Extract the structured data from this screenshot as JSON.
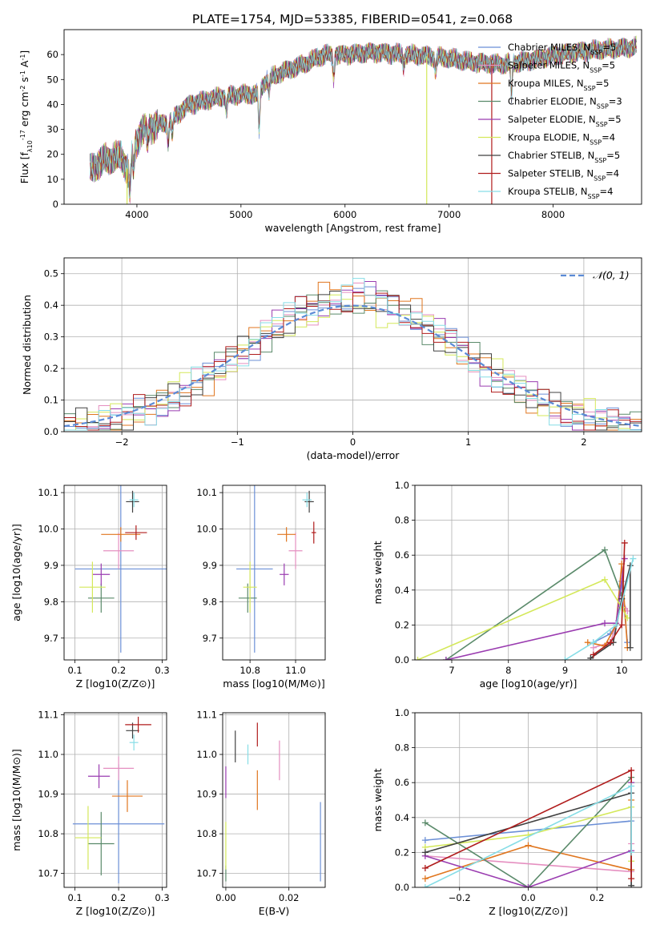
{
  "figure_title": "PLATE=1754, MJD=53385, FIBERID=0541, z=0.068",
  "series_styles": [
    {
      "name": "Chabrier MILES",
      "nssp": "5",
      "color": "#6b8fd6"
    },
    {
      "name": "Salpeter MILES",
      "nssp": "5",
      "color": "#e58fc0"
    },
    {
      "name": "Kroupa MILES",
      "nssp": "5",
      "color": "#e0761f"
    },
    {
      "name": "Chabrier ELODIE",
      "nssp": "3",
      "color": "#5a8a6a"
    },
    {
      "name": "Salpeter ELODIE",
      "nssp": "5",
      "color": "#9a3cb0"
    },
    {
      "name": "Kroupa ELODIE",
      "nssp": "4",
      "color": "#d4e85a"
    },
    {
      "name": "Chabrier STELIB",
      "nssp": "5",
      "color": "#404040"
    },
    {
      "name": "Salpeter STELIB",
      "nssp": "4",
      "color": "#b01c1c"
    },
    {
      "name": "Kroupa STELIB",
      "nssp": "4",
      "color": "#86dde6"
    }
  ],
  "chart_data": [
    {
      "id": "spectrum",
      "type": "line",
      "xlabel": "wavelength [Angstrom, rest frame]",
      "ylabel": "Flux [f_λ10^-17 erg cm^-2 s^-1 A^-1]",
      "xlim": [
        3300,
        8850
      ],
      "ylim": [
        0,
        70
      ],
      "xticks": [
        4000,
        5000,
        6000,
        7000,
        8000
      ],
      "yticks": [
        0,
        10,
        20,
        30,
        40,
        50,
        60
      ],
      "legend": "upper-right",
      "continuum": [
        [
          3550,
          14
        ],
        [
          3700,
          18
        ],
        [
          3850,
          19
        ],
        [
          3920,
          13
        ],
        [
          3960,
          22
        ],
        [
          4050,
          30
        ],
        [
          4300,
          33
        ],
        [
          4500,
          40
        ],
        [
          4800,
          43
        ],
        [
          5000,
          44
        ],
        [
          5150,
          44
        ],
        [
          5250,
          50
        ],
        [
          5400,
          53
        ],
        [
          5600,
          56
        ],
        [
          5800,
          60
        ],
        [
          6000,
          60
        ],
        [
          6300,
          61
        ],
        [
          6600,
          60
        ],
        [
          6900,
          59
        ],
        [
          7200,
          57
        ],
        [
          7500,
          56
        ],
        [
          7800,
          58
        ],
        [
          8200,
          61
        ],
        [
          8500,
          62
        ],
        [
          8800,
          63
        ]
      ],
      "dips": [
        [
          3934,
          12
        ],
        [
          3968,
          9
        ],
        [
          4101,
          6
        ],
        [
          4300,
          8
        ],
        [
          4340,
          7
        ],
        [
          4861,
          6
        ],
        [
          5175,
          16
        ],
        [
          5270,
          6
        ],
        [
          5890,
          9
        ],
        [
          6563,
          5
        ],
        [
          6870,
          6
        ],
        [
          7600,
          14
        ]
      ],
      "spikes": [
        {
          "series": 5,
          "x": 3905
        },
        {
          "series": 5,
          "x": 6785
        },
        {
          "series": 7,
          "x": 7410
        }
      ]
    },
    {
      "id": "residuals",
      "type": "bar",
      "xlabel": "(data-model)/error",
      "ylabel": "Normed distribution",
      "xlim": [
        -2.5,
        2.5
      ],
      "ylim": [
        0,
        0.55
      ],
      "xticks": [
        -2,
        -1,
        0,
        1,
        2
      ],
      "yticks": [
        0.0,
        0.1,
        0.2,
        0.3,
        0.4,
        0.5
      ],
      "grid": true,
      "bin_width": 0.1,
      "reference_curve": "N(0,1)",
      "legend": "upper-right"
    },
    {
      "id": "z-age",
      "type": "scatter",
      "xlabel": "Z [log10(Z/Z⊙)]",
      "ylabel": "age [log10(age/yr)]",
      "xlim": [
        0.075,
        0.31
      ],
      "ylim": [
        9.64,
        10.12
      ],
      "xticks": [
        0.1,
        0.2,
        0.3
      ],
      "yticks": [
        9.7,
        9.8,
        9.9,
        10.0,
        10.1
      ],
      "grid": true,
      "points": [
        {
          "series": 0,
          "x": 0.205,
          "y": 9.89,
          "xe": 0.105,
          "ye": 0.23
        },
        {
          "series": 1,
          "x": 0.2,
          "y": 9.94,
          "xe": 0.035,
          "ye": 0.05
        },
        {
          "series": 2,
          "x": 0.205,
          "y": 9.985,
          "xe": 0.045,
          "ye": 0.02
        },
        {
          "series": 3,
          "x": 0.16,
          "y": 9.81,
          "xe": 0.03,
          "ye": 0.04
        },
        {
          "series": 4,
          "x": 0.16,
          "y": 9.875,
          "xe": 0.02,
          "ye": 0.03
        },
        {
          "series": 5,
          "x": 0.14,
          "y": 9.84,
          "xe": 0.03,
          "ye": 0.07
        },
        {
          "series": 6,
          "x": 0.232,
          "y": 10.075,
          "xe": 0.015,
          "ye": 0.03
        },
        {
          "series": 7,
          "x": 0.24,
          "y": 9.99,
          "xe": 0.025,
          "ye": 0.02
        },
        {
          "series": 8,
          "x": 0.235,
          "y": 10.08,
          "xe": 0.01,
          "ye": 0.02
        }
      ]
    },
    {
      "id": "mass-age",
      "type": "scatter",
      "xlabel": "mass [log10(M/M⊙)]",
      "ylabel": "",
      "xlim": [
        10.68,
        11.13
      ],
      "ylim": [
        9.64,
        10.12
      ],
      "xticks": [
        10.8,
        11.0
      ],
      "yticks": [
        9.7,
        9.8,
        9.9,
        10.0,
        10.1
      ],
      "grid": true,
      "points": [
        {
          "series": 0,
          "x": 10.82,
          "y": 9.89,
          "xe": 0.08,
          "ye": 0.23
        },
        {
          "series": 1,
          "x": 11.0,
          "y": 9.94,
          "xe": 0.03,
          "ye": 0.05
        },
        {
          "series": 2,
          "x": 10.96,
          "y": 9.985,
          "xe": 0.04,
          "ye": 0.02
        },
        {
          "series": 3,
          "x": 10.79,
          "y": 9.81,
          "xe": 0.04,
          "ye": 0.04
        },
        {
          "series": 4,
          "x": 10.95,
          "y": 9.875,
          "xe": 0.02,
          "ye": 0.03
        },
        {
          "series": 5,
          "x": 10.8,
          "y": 9.84,
          "xe": 0.03,
          "ye": 0.07
        },
        {
          "series": 6,
          "x": 11.06,
          "y": 10.075,
          "xe": 0.02,
          "ye": 0.03
        },
        {
          "series": 7,
          "x": 11.08,
          "y": 9.99,
          "xe": 0.01,
          "ye": 0.03
        },
        {
          "series": 8,
          "x": 11.05,
          "y": 10.08,
          "xe": 0.02,
          "ye": 0.02
        }
      ]
    },
    {
      "id": "age-weight",
      "type": "line",
      "xlabel": "age [log10(age/yr)]",
      "ylabel": "mass weight",
      "xlim": [
        6.35,
        10.35
      ],
      "ylim": [
        0,
        1.0
      ],
      "xticks": [
        7,
        8,
        9,
        10
      ],
      "yticks": [
        0.0,
        0.2,
        0.4,
        0.6,
        0.8,
        1.0
      ],
      "grid": true,
      "series": [
        {
          "series": 0,
          "points": [
            [
              9.5,
              0.1
            ],
            [
              9.8,
              0.15
            ],
            [
              9.9,
              0.2
            ],
            [
              10.0,
              0.45
            ],
            [
              10.1,
              0.1
            ]
          ]
        },
        {
          "series": 1,
          "points": [
            [
              9.5,
              0.07
            ],
            [
              9.8,
              0.1
            ],
            [
              9.9,
              0.2
            ],
            [
              10.0,
              0.35
            ],
            [
              10.1,
              0.28
            ]
          ]
        },
        {
          "series": 2,
          "points": [
            [
              9.4,
              0.1
            ],
            [
              9.7,
              0.08
            ],
            [
              9.9,
              0.2
            ],
            [
              10.0,
              0.55
            ],
            [
              10.1,
              0.07
            ]
          ]
        },
        {
          "series": 3,
          "points": [
            [
              6.9,
              0.0
            ],
            [
              9.7,
              0.63
            ],
            [
              10.0,
              0.37
            ]
          ]
        },
        {
          "series": 4,
          "points": [
            [
              6.9,
              0.0
            ],
            [
              9.7,
              0.21
            ],
            [
              9.9,
              0.21
            ],
            [
              10.05,
              0.58
            ]
          ]
        },
        {
          "series": 5,
          "points": [
            [
              6.4,
              0.0
            ],
            [
              9.7,
              0.46
            ],
            [
              10.0,
              0.3
            ],
            [
              10.1,
              0.24
            ]
          ]
        },
        {
          "series": 6,
          "points": [
            [
              9.45,
              0.01
            ],
            [
              9.85,
              0.1
            ],
            [
              10.0,
              0.35
            ],
            [
              10.15,
              0.54
            ],
            [
              10.15,
              0.07
            ]
          ]
        },
        {
          "series": 7,
          "points": [
            [
              9.5,
              0.03
            ],
            [
              9.8,
              0.1
            ],
            [
              10.0,
              0.2
            ],
            [
              10.05,
              0.67
            ]
          ]
        },
        {
          "series": 8,
          "points": [
            [
              9.0,
              0.0
            ],
            [
              9.5,
              0.1
            ],
            [
              9.9,
              0.2
            ],
            [
              10.2,
              0.58
            ]
          ]
        }
      ]
    },
    {
      "id": "z-mass",
      "type": "scatter",
      "xlabel": "Z [log10(Z/Z⊙)]",
      "ylabel": "mass [log10(M/M⊙)]",
      "xlim": [
        0.075,
        0.31
      ],
      "ylim": [
        10.665,
        11.105
      ],
      "xticks": [
        0.1,
        0.2,
        0.3
      ],
      "yticks": [
        10.7,
        10.8,
        10.9,
        11.0,
        11.1
      ],
      "grid": true,
      "points": [
        {
          "series": 0,
          "x": 0.2,
          "y": 10.825,
          "xe": 0.105,
          "ye": 0.15
        },
        {
          "series": 1,
          "x": 0.2,
          "y": 10.965,
          "xe": 0.035,
          "ye": 0.03
        },
        {
          "series": 2,
          "x": 0.22,
          "y": 10.895,
          "xe": 0.035,
          "ye": 0.04
        },
        {
          "series": 3,
          "x": 0.16,
          "y": 10.775,
          "xe": 0.03,
          "ye": 0.08
        },
        {
          "series": 4,
          "x": 0.155,
          "y": 10.945,
          "xe": 0.025,
          "ye": 0.03
        },
        {
          "series": 5,
          "x": 0.13,
          "y": 10.79,
          "xe": 0.03,
          "ye": 0.08
        },
        {
          "series": 6,
          "x": 0.232,
          "y": 11.06,
          "xe": 0.015,
          "ye": 0.02
        },
        {
          "series": 7,
          "x": 0.245,
          "y": 11.075,
          "xe": 0.03,
          "ye": 0.02
        },
        {
          "series": 8,
          "x": 0.235,
          "y": 11.03,
          "xe": 0.01,
          "ye": 0.02
        }
      ]
    },
    {
      "id": "ebv-mass",
      "type": "scatter",
      "xlabel": "E(B-V)",
      "ylabel": "",
      "xlim": [
        -0.001,
        0.0315
      ],
      "ylim": [
        10.665,
        11.105
      ],
      "xticks": [
        0.0,
        0.02
      ],
      "yticks": [
        10.7,
        10.8,
        10.9,
        11.0,
        11.1
      ],
      "grid": true,
      "points": [
        {
          "series": 0,
          "x": 0.03,
          "y": 10.78,
          "xe": 0,
          "ye": 0.1
        },
        {
          "series": 1,
          "x": 0.017,
          "y": 10.985,
          "xe": 0,
          "ye": 0.05
        },
        {
          "series": 2,
          "x": 0.01,
          "y": 10.91,
          "xe": 0,
          "ye": 0.05
        },
        {
          "series": 3,
          "x": 0.0,
          "y": 10.7,
          "xe": 0,
          "ye": 0.02
        },
        {
          "series": 4,
          "x": 0.0,
          "y": 10.93,
          "xe": 0,
          "ye": 0.04
        },
        {
          "series": 5,
          "x": 0.0,
          "y": 10.77,
          "xe": 0,
          "ye": 0.06
        },
        {
          "series": 6,
          "x": 0.003,
          "y": 11.02,
          "xe": 0,
          "ye": 0.04
        },
        {
          "series": 7,
          "x": 0.01,
          "y": 11.05,
          "xe": 0,
          "ye": 0.03
        },
        {
          "series": 8,
          "x": 0.007,
          "y": 11.0,
          "xe": 0,
          "ye": 0.025
        }
      ]
    },
    {
      "id": "z-weight",
      "type": "line",
      "xlabel": "Z [log10(Z/Z⊙)]",
      "ylabel": "mass weight",
      "xlim": [
        -0.33,
        0.33
      ],
      "ylim": [
        0,
        1.0
      ],
      "xticks": [
        -0.2,
        0.0,
        0.2
      ],
      "yticks": [
        0.0,
        0.2,
        0.4,
        0.6,
        0.8,
        1.0
      ],
      "grid": true,
      "series": [
        {
          "series": 0,
          "points": [
            [
              -0.3,
              0.27
            ],
            [
              0.3,
              0.38
            ],
            [
              0.3,
              0.1
            ]
          ]
        },
        {
          "series": 1,
          "points": [
            [
              -0.3,
              0.18
            ],
            [
              0.3,
              0.09
            ],
            [
              0.3,
              0.25
            ]
          ]
        },
        {
          "series": 2,
          "points": [
            [
              -0.3,
              0.05
            ],
            [
              0.0,
              0.24
            ],
            [
              0.3,
              0.1
            ],
            [
              0.3,
              0.5
            ]
          ]
        },
        {
          "series": 3,
          "points": [
            [
              -0.3,
              0.37
            ],
            [
              0.0,
              0.0
            ],
            [
              0.3,
              0.63
            ]
          ]
        },
        {
          "series": 4,
          "points": [
            [
              -0.3,
              0.18
            ],
            [
              0.0,
              0.0
            ],
            [
              0.3,
              0.21
            ],
            [
              0.3,
              0.6
            ]
          ]
        },
        {
          "series": 5,
          "points": [
            [
              -0.3,
              0.23
            ],
            [
              0.0,
              0.3
            ],
            [
              0.3,
              0.46
            ],
            [
              0.3,
              0.15
            ]
          ]
        },
        {
          "series": 6,
          "points": [
            [
              -0.3,
              0.2
            ],
            [
              0.3,
              0.54
            ],
            [
              0.3,
              0.01
            ]
          ]
        },
        {
          "series": 7,
          "points": [
            [
              -0.3,
              0.11
            ],
            [
              0.3,
              0.67
            ],
            [
              0.3,
              0.05
            ]
          ]
        },
        {
          "series": 8,
          "points": [
            [
              -0.3,
              0.0
            ],
            [
              0.3,
              0.58
            ],
            [
              0.3,
              0.2
            ]
          ]
        }
      ]
    }
  ]
}
